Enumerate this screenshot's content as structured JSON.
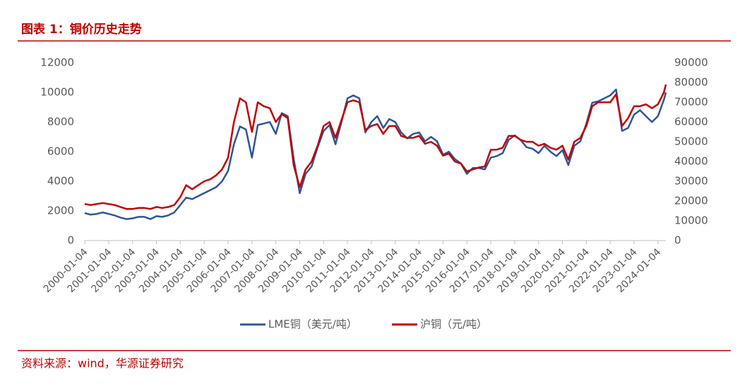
{
  "chart_data": {
    "type": "line",
    "title": "图表 1：铜价历史走势",
    "source": "资料来源：wind，华源证券研究",
    "x": [
      "2000-01-04",
      "2000-04-04",
      "2000-07-04",
      "2000-10-04",
      "2001-01-04",
      "2001-04-04",
      "2001-07-04",
      "2001-10-04",
      "2002-01-04",
      "2002-04-04",
      "2002-07-04",
      "2002-10-04",
      "2003-01-04",
      "2003-04-04",
      "2003-07-04",
      "2003-10-04",
      "2004-01-04",
      "2004-04-04",
      "2004-07-04",
      "2004-10-04",
      "2005-01-04",
      "2005-04-04",
      "2005-07-04",
      "2005-10-04",
      "2006-01-04",
      "2006-04-04",
      "2006-07-04",
      "2006-10-04",
      "2007-01-04",
      "2007-04-04",
      "2007-07-04",
      "2007-10-04",
      "2008-01-04",
      "2008-04-04",
      "2008-07-04",
      "2008-10-04",
      "2009-01-04",
      "2009-04-04",
      "2009-07-04",
      "2009-10-04",
      "2010-01-04",
      "2010-04-04",
      "2010-07-04",
      "2010-10-04",
      "2011-01-04",
      "2011-04-04",
      "2011-07-04",
      "2011-10-04",
      "2012-01-04",
      "2012-04-04",
      "2012-07-04",
      "2012-10-04",
      "2013-01-04",
      "2013-04-04",
      "2013-07-04",
      "2013-10-04",
      "2014-01-04",
      "2014-04-04",
      "2014-07-04",
      "2014-10-04",
      "2015-01-04",
      "2015-04-04",
      "2015-07-04",
      "2015-10-04",
      "2016-01-04",
      "2016-04-04",
      "2016-07-04",
      "2016-10-04",
      "2017-01-04",
      "2017-04-04",
      "2017-07-04",
      "2017-10-04",
      "2018-01-04",
      "2018-04-04",
      "2018-07-04",
      "2018-10-04",
      "2019-01-04",
      "2019-04-04",
      "2019-07-04",
      "2019-10-04",
      "2020-01-04",
      "2020-04-04",
      "2020-07-04",
      "2020-10-04",
      "2021-01-04",
      "2021-04-04",
      "2021-07-04",
      "2021-10-04",
      "2022-01-04",
      "2022-04-04",
      "2022-07-04",
      "2022-10-04",
      "2023-01-04",
      "2023-04-04",
      "2023-07-04",
      "2023-10-04",
      "2024-01-04",
      "2024-04-04",
      "2024-05-04"
    ],
    "series": [
      {
        "name": "LME铜（美元/吨）",
        "color": "#2f5597",
        "axis": "y",
        "values": [
          1850,
          1750,
          1800,
          1900,
          1800,
          1700,
          1550,
          1450,
          1500,
          1600,
          1600,
          1450,
          1650,
          1600,
          1700,
          1900,
          2400,
          2900,
          2800,
          3000,
          3200,
          3400,
          3600,
          4000,
          4700,
          6500,
          7700,
          7500,
          5600,
          7800,
          7900,
          8000,
          7200,
          8600,
          8400,
          5500,
          3200,
          4500,
          5000,
          6300,
          7400,
          7800,
          6500,
          8000,
          9600,
          9800,
          9600,
          7300,
          8000,
          8400,
          7600,
          8200,
          8000,
          7300,
          6900,
          7200,
          7300,
          6700,
          7000,
          6700,
          5800,
          6000,
          5500,
          5200,
          4500,
          4900,
          4900,
          4800,
          5600,
          5700,
          5900,
          6800,
          7100,
          6800,
          6300,
          6200,
          5900,
          6400,
          6000,
          5700,
          6100,
          5100,
          6400,
          6700,
          7900,
          9300,
          9400,
          9600,
          9800,
          10200,
          7400,
          7600,
          8500,
          8800,
          8400,
          8000,
          8400,
          9500,
          10000
        ]
      },
      {
        "name": "沪铜（元/吨）",
        "color": "#c00000",
        "axis": "y2",
        "values": [
          18500,
          18000,
          18500,
          19000,
          18500,
          18000,
          17000,
          16000,
          16000,
          16500,
          16500,
          16000,
          17000,
          16500,
          17000,
          18000,
          22000,
          28000,
          26000,
          28000,
          30000,
          31000,
          33000,
          36000,
          42000,
          60000,
          72000,
          70000,
          55000,
          70000,
          68000,
          67000,
          60000,
          64000,
          62000,
          38000,
          27000,
          36000,
          40000,
          48000,
          58000,
          60000,
          52000,
          61000,
          70000,
          71000,
          70000,
          56000,
          58000,
          59000,
          54000,
          58000,
          58000,
          53000,
          52000,
          52000,
          53000,
          49000,
          50000,
          48000,
          43000,
          44000,
          40000,
          39000,
          35000,
          36000,
          37000,
          37500,
          46000,
          46000,
          47000,
          53000,
          53000,
          51000,
          50000,
          50000,
          48000,
          49000,
          47000,
          46000,
          48000,
          41000,
          50000,
          52000,
          58000,
          68000,
          70000,
          70000,
          70000,
          74000,
          58000,
          62000,
          68000,
          68000,
          69000,
          67000,
          69000,
          75000,
          79000
        ]
      }
    ],
    "xlim": [
      "2000-01-04",
      "2024-05-04"
    ],
    "xticks": [
      "2000-01-04",
      "2001-01-04",
      "2002-01-04",
      "2003-01-04",
      "2004-01-04",
      "2005-01-04",
      "2006-01-04",
      "2007-01-04",
      "2008-01-04",
      "2009-01-04",
      "2010-01-04",
      "2011-01-04",
      "2012-01-04",
      "2013-01-04",
      "2014-01-04",
      "2015-01-04",
      "2016-01-04",
      "2017-01-04",
      "2018-01-04",
      "2019-01-04",
      "2020-01-04",
      "2021-01-04",
      "2022-01-04",
      "2023-01-04",
      "2024-01-04"
    ],
    "ylim": [
      0,
      12000
    ],
    "yticks": [
      0,
      2000,
      4000,
      6000,
      8000,
      10000,
      12000
    ],
    "y2lim": [
      0,
      90000
    ],
    "y2ticks": [
      0,
      10000,
      20000,
      30000,
      40000,
      50000,
      60000,
      70000,
      80000,
      90000
    ],
    "grid": false
  }
}
